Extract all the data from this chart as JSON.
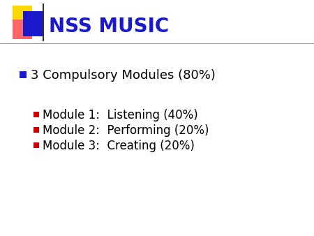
{
  "title": "NSS MUSIC",
  "title_color": "#1A1ACC",
  "title_fontsize": 20,
  "background_color": "#FFFFFF",
  "bullet1_text": "3 Compulsory Modules (80%)",
  "bullet1_color": "#000000",
  "bullet1_marker_color": "#1A1ACC",
  "bullet1_fontsize": 13,
  "sub_bullets": [
    "Module 1:  Listening (40%)",
    "Module 2:  Performing (20%)",
    "Module 3:  Creating (20%)"
  ],
  "sub_bullet_color": "#000000",
  "sub_bullet_marker_color": "#CC0000",
  "sub_bullet_fontsize": 12,
  "logo_yellow": "#FFD700",
  "logo_pink": "#FF6666",
  "logo_blue": "#1A1ACC",
  "line_color": "#999999"
}
